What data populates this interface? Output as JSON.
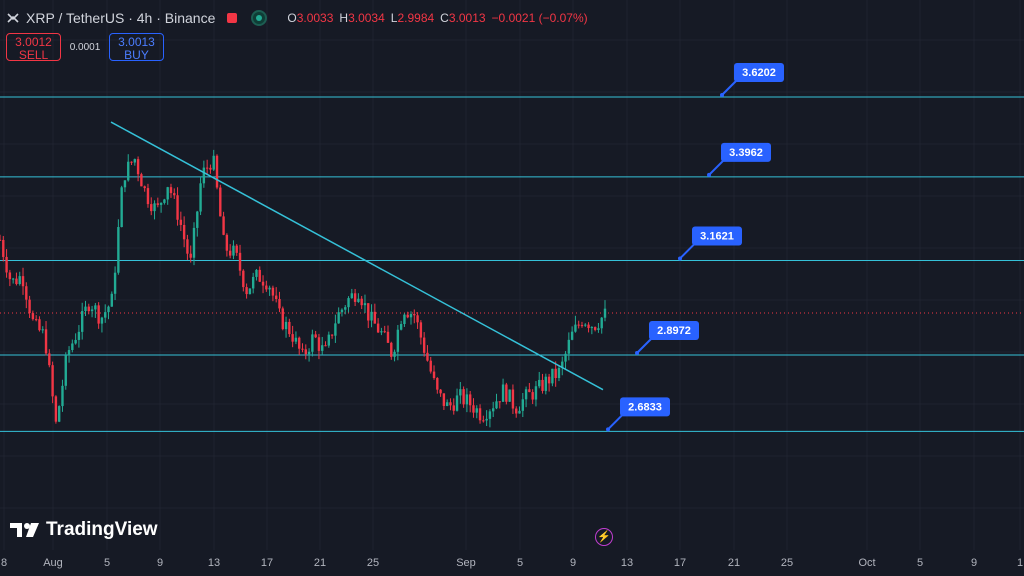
{
  "header": {
    "symbol": "XRP / TetherUS · 4h · Binance",
    "ohlc": [
      {
        "k": "O",
        "v": "3.0033"
      },
      {
        "k": "H",
        "v": "3.0034"
      },
      {
        "k": "L",
        "v": "2.9984"
      },
      {
        "k": "C",
        "v": "3.0013"
      }
    ],
    "change": "−0.0021 (−0.07%)"
  },
  "trade": {
    "sell_price": "3.0012",
    "sell_label": "SELL",
    "spread": "0.0001",
    "buy_price": "3.0013",
    "buy_label": "BUY"
  },
  "brand": "TradingView",
  "colors": {
    "up": "#22ab94",
    "down": "#f23645",
    "line": "#35c1d8",
    "label_bg": "#2962ff",
    "background": "#161a25"
  },
  "chart_data": {
    "type": "candlestick",
    "levels": [
      {
        "label": "3.6202",
        "value": 3.6202
      },
      {
        "label": "3.3962",
        "value": 3.3962
      },
      {
        "label": "3.1621",
        "value": 3.1621
      },
      {
        "label": "2.8972",
        "value": 2.8972
      },
      {
        "label": "2.6833",
        "value": 2.6833
      }
    ],
    "x_ticks": [
      "8",
      "Aug",
      "5",
      "9",
      "13",
      "17",
      "21",
      "25",
      "Sep",
      "5",
      "9",
      "13",
      "17",
      "21",
      "25",
      "Oct",
      "5",
      "9",
      "1"
    ],
    "current_price": 3.0013,
    "trendline": {
      "start_date": "Aug 6",
      "start_price": 3.55,
      "end_date": "Sep 13",
      "end_price": 2.8
    },
    "price_path": [
      3.22,
      3.1,
      3.12,
      2.98,
      2.95,
      2.7,
      2.9,
      2.97,
      3.05,
      3.0,
      3.05,
      3.4,
      3.45,
      3.35,
      3.3,
      3.38,
      3.28,
      3.15,
      3.4,
      3.45,
      3.2,
      3.18,
      3.08,
      3.12,
      3.1,
      3.0,
      2.96,
      2.89,
      2.95,
      2.9,
      3.0,
      3.05,
      3.08,
      3.0,
      2.96,
      2.9,
      3.03,
      3.01,
      2.9,
      2.79,
      2.75,
      2.78,
      2.76,
      2.73,
      2.76,
      2.8,
      2.75,
      2.78,
      2.8,
      2.83,
      2.85,
      2.95,
      3.0,
      2.98,
      3.01
    ]
  }
}
